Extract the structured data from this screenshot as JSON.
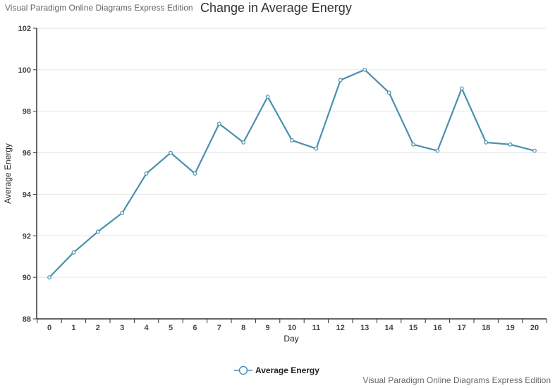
{
  "watermark": {
    "top": "Visual Paradigm Online Diagrams Express Edition",
    "bottom": "Visual Paradigm Online Diagrams Express Edition"
  },
  "colors": {
    "series": "#4a8fb0",
    "grid": "#e6e6e6",
    "axis": "#333333"
  },
  "chart_data": {
    "type": "line",
    "title": "Change in Average Energy",
    "xlabel": "Day",
    "ylabel": "Average Energy",
    "ylim": [
      88,
      102
    ],
    "yticks": [
      88,
      90,
      92,
      94,
      96,
      98,
      100,
      102
    ],
    "categories": [
      "0",
      "1",
      "2",
      "3",
      "4",
      "5",
      "6",
      "7",
      "8",
      "9",
      "10",
      "11",
      "12",
      "13",
      "14",
      "15",
      "16",
      "17",
      "18",
      "19",
      "20"
    ],
    "series": [
      {
        "name": "Average Energy",
        "values": [
          90.0,
          91.2,
          92.2,
          93.1,
          95.0,
          96.0,
          95.0,
          97.4,
          96.5,
          98.7,
          96.6,
          96.2,
          99.5,
          100.0,
          98.9,
          96.4,
          96.1,
          99.1,
          96.5,
          96.4,
          96.1
        ]
      }
    ],
    "grid": true,
    "legend": "bottom"
  }
}
